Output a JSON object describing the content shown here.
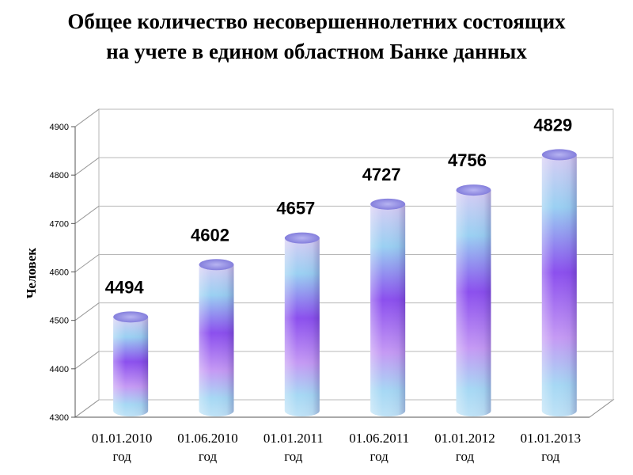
{
  "header": {
    "title_line1": "Общее количество несовершеннолетних состоящих",
    "title_line2": "на учете в едином областном Банке данных"
  },
  "chart_data": {
    "type": "bar",
    "title": "Общее количество несовершеннолетних состоящих на учете в едином областном Банке данных",
    "ylabel": "Человек",
    "xlabel": "",
    "ylim": [
      4300,
      4900
    ],
    "yticks": [
      4300,
      4400,
      4500,
      4600,
      4700,
      4800,
      4900
    ],
    "grid": true,
    "categories": [
      [
        "01.01.2010",
        "год"
      ],
      [
        "01.06.2010",
        "год"
      ],
      [
        "01.01.2011",
        "год"
      ],
      [
        "01.06.2011",
        "год"
      ],
      [
        "01.01.2012",
        "год"
      ],
      [
        "01.01.2013",
        "год"
      ]
    ],
    "values": [
      4494,
      4602,
      4657,
      4727,
      4756,
      4829
    ],
    "data_labels": [
      "4494",
      "4602",
      "4657",
      "4727",
      "4756",
      "4829"
    ]
  }
}
